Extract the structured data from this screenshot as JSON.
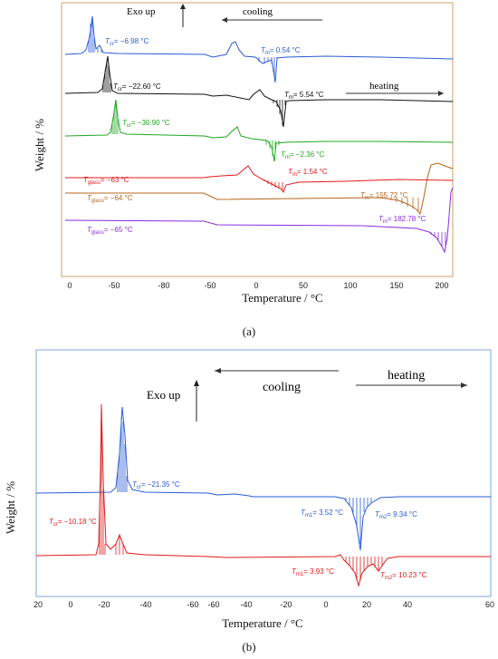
{
  "chart_data": [
    {
      "panel": "(a)",
      "type": "line",
      "xlabel": "Temperature / °C",
      "ylabel": "Weight / %",
      "x_tick_labels": [
        "0",
        "-50",
        "-80",
        "-50",
        "0",
        "50",
        "100",
        "150",
        "200"
      ],
      "annotations": {
        "exo_up": "Exo up",
        "cooling": "cooling",
        "heating": "heating"
      },
      "series": [
        {
          "color": "#2a5bd7",
          "labels": [
            {
              "sym": "T",
              "sub": "cr",
              "value": "= −6.98 °C"
            },
            {
              "sym": "T",
              "sub": "m",
              "value": "= 0.54 °C"
            }
          ]
        },
        {
          "color": "#111111",
          "labels": [
            {
              "sym": "T",
              "sub": "cr",
              "value": "= −22.60 °C"
            },
            {
              "sym": "T",
              "sub": "m",
              "value": "= 5.54 °C"
            }
          ]
        },
        {
          "color": "#1fa81f",
          "labels": [
            {
              "sym": "T",
              "sub": "cr",
              "value": "= −30.90 °C"
            },
            {
              "sym": "T",
              "sub": "m",
              "value": "= −2.36 °C"
            }
          ]
        },
        {
          "color": "#e01b1b",
          "labels": [
            {
              "sym": "T",
              "sub": "glass",
              "value": "= −63 °C"
            },
            {
              "sym": "T",
              "sub": "m",
              "value": "= 1.54 °C"
            }
          ]
        },
        {
          "color": "#b5651d",
          "labels": [
            {
              "sym": "T",
              "sub": "glass",
              "value": "= −64 °C"
            },
            {
              "sym": "T",
              "sub": "m",
              "value": "= 155.72 °C"
            }
          ]
        },
        {
          "color": "#8a2be2",
          "labels": [
            {
              "sym": "T",
              "sub": "glass",
              "value": "= −65 °C"
            },
            {
              "sym": "T",
              "sub": "m",
              "value": "= 182.78 °C"
            }
          ]
        }
      ]
    },
    {
      "panel": "(b)",
      "type": "line",
      "xlabel": "Temperature / °C",
      "ylabel": "Weight / %",
      "x_tick_labels": [
        "20",
        "0",
        "-20",
        "-40",
        "-60",
        "-60",
        "-40",
        "-20",
        "0",
        "20",
        "40",
        "60"
      ],
      "annotations": {
        "exo_up": "Exo up",
        "cooling": "cooling",
        "heating": "heating"
      },
      "series": [
        {
          "color": "#2a5bd7",
          "labels": [
            {
              "sym": "T",
              "sub": "cr",
              "value": "= −21.35 °C"
            },
            {
              "sym": "T",
              "sub": "m1",
              "value": "= 3.52 °C"
            },
            {
              "sym": "T",
              "sub": "m2",
              "value": "= 9.34 °C"
            }
          ]
        },
        {
          "color": "#e01b1b",
          "labels": [
            {
              "sym": "T",
              "sub": "cr",
              "value": "= −10.18 °C"
            },
            {
              "sym": "T",
              "sub": "m1",
              "value": "= 3.93 °C"
            },
            {
              "sym": "T",
              "sub": "m2",
              "value": "= 10.23 °C"
            }
          ]
        }
      ]
    }
  ]
}
